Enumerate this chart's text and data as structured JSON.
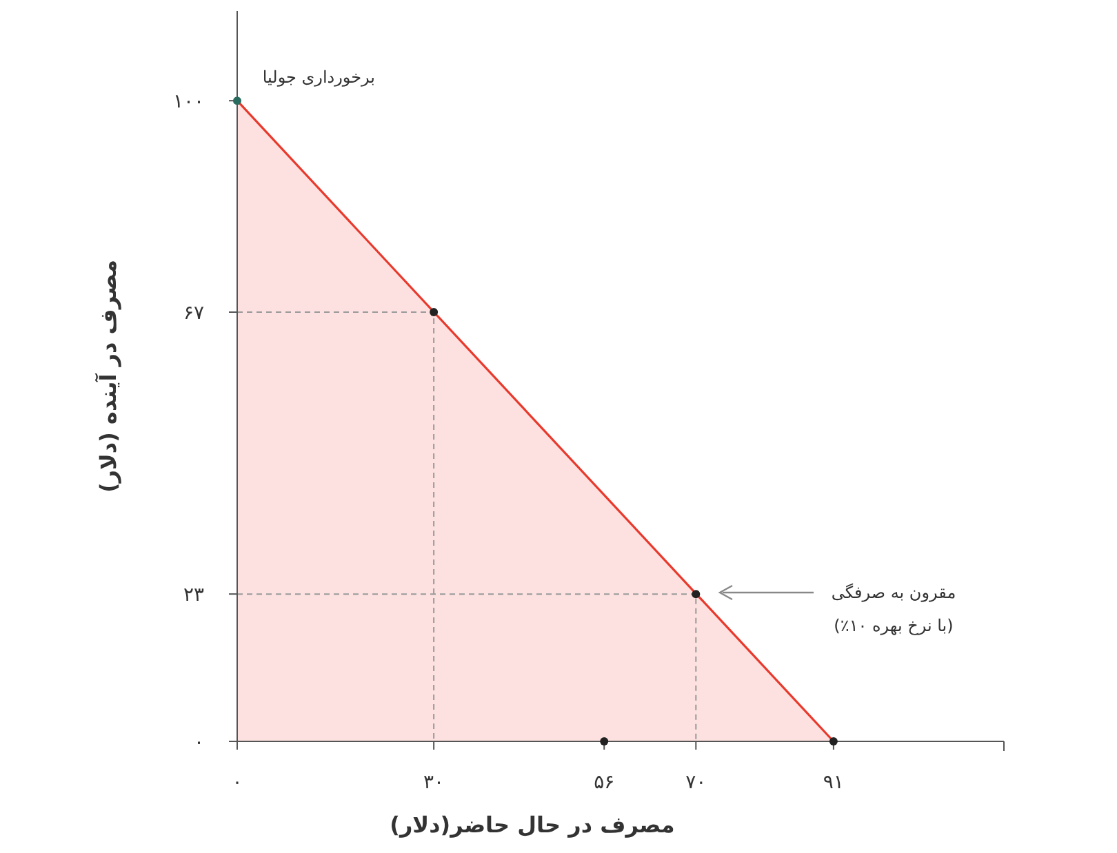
{
  "chart_data": {
    "type": "area",
    "xlabel": "مصرف در حال حاضر(دلار)",
    "ylabel": "مصرف در آینده (دلار)",
    "xlim": [
      0,
      117
    ],
    "ylim": [
      0,
      114
    ],
    "xticks": [
      {
        "value": 0,
        "label": "۰"
      },
      {
        "value": 30,
        "label": "۳۰"
      },
      {
        "value": 56,
        "label": "۵۶"
      },
      {
        "value": 70,
        "label": "۷۰"
      },
      {
        "value": 91,
        "label": "۹۱"
      }
    ],
    "yticks": [
      {
        "value": 0,
        "label": "۰"
      },
      {
        "value": 23,
        "label": "۲۳"
      },
      {
        "value": 67,
        "label": "۶۷"
      },
      {
        "value": 100,
        "label": "۱۰۰"
      }
    ],
    "grid": false,
    "series": [
      {
        "x": [
          0,
          91
        ],
        "values": [
          100,
          0
        ],
        "color": "#e8392c"
      },
      {
        "type": "line",
        "x": [
          0,
          30,
          30
        ],
        "values": [
          67,
          67,
          0
        ],
        "color": "#999999",
        "line_style": "dashed"
      },
      {
        "type": "line",
        "x": [
          0,
          70,
          70
        ],
        "values": [
          23,
          23,
          0
        ],
        "color": "#999999",
        "line_style": "dashed"
      },
      {
        "type": "scatter",
        "x": [
          0,
          30,
          70,
          91,
          56
        ],
        "values": [
          100,
          67,
          23,
          0,
          0
        ],
        "colors": [
          "#2a6b5f",
          "#222222",
          "#222222",
          "#222222",
          "#222222"
        ],
        "marker": "circle"
      }
    ],
    "annotations": [
      {
        "text": "برخورداری جولیا",
        "x": 0,
        "y": 100
      },
      "مقرون به صرفگی",
      "(با نرخ بهره ۱۰٪)"
    ]
  }
}
